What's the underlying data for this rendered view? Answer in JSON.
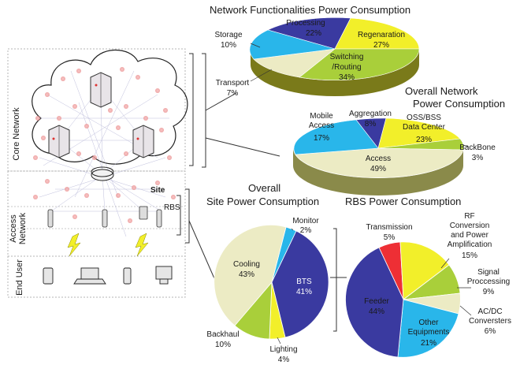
{
  "titles": {
    "network_functionalities": "Network Functionalities Power Consumption",
    "overall_network_l1": "Overall Network",
    "overall_network_l2": "Power Consumption",
    "overall_site_l1": "Overall",
    "overall_site_l2": "Site Power Consumption",
    "rbs": "RBS Power Consumption"
  },
  "left_panel": {
    "core_network": "Core Network",
    "access_network_l1": "Access",
    "access_network_l2": "Network",
    "end_user": "End User",
    "site": "Site",
    "rbs": "RBS"
  },
  "colors": {
    "navy": "#3a3aa0",
    "yellow": "#f2ef2a",
    "green": "#a9cf3a",
    "cream": "#ecebc4",
    "cyan": "#29b6ea",
    "red": "#ee2f35",
    "gray": "#c8c8c8"
  },
  "chart_data": [
    {
      "type": "pie",
      "title": "Network Functionalities Power Consumption",
      "slices": [
        {
          "label": "Processing",
          "value": "22%",
          "color": "#3a3aa0"
        },
        {
          "label": "Regenaration",
          "value": "27%",
          "color": "#f2ef2a"
        },
        {
          "label": "Switching /Routing",
          "value": "34%",
          "color": "#a9cf3a"
        },
        {
          "label": "Transport",
          "value": "7%",
          "color": "#ecebc4"
        },
        {
          "label": "Storage",
          "value": "10%",
          "color": "#29b6ea"
        }
      ]
    },
    {
      "type": "pie",
      "title": "Overall Network Power Consumption",
      "slices": [
        {
          "label": "Aggregation",
          "value": "8%",
          "color": "#3a3aa0"
        },
        {
          "label": "OSS/BSS Data Center",
          "value": "23%",
          "color": "#f2ef2a"
        },
        {
          "label": "BackBone",
          "value": "3%",
          "color": "#a9cf3a"
        },
        {
          "label": "Access",
          "value": "49%",
          "color": "#ecebc4"
        },
        {
          "label": "Mobile Access",
          "value": "17%",
          "color": "#29b6ea"
        }
      ]
    },
    {
      "type": "pie",
      "title": "Overall Site Power Consumption",
      "slices": [
        {
          "label": "Monitor",
          "value": "2%",
          "color": "#29b6ea"
        },
        {
          "label": "BTS",
          "value": "41%",
          "color": "#3a3aa0"
        },
        {
          "label": "Lighting",
          "value": "4%",
          "color": "#f2ef2a"
        },
        {
          "label": "Backhaul",
          "value": "10%",
          "color": "#a9cf3a"
        },
        {
          "label": "Cooling",
          "value": "43%",
          "color": "#ecebc4"
        }
      ]
    },
    {
      "type": "pie",
      "title": "RBS Power Consumption",
      "slices": [
        {
          "label": "Transmission",
          "value": "5%",
          "color": "#ee2f35"
        },
        {
          "label": "RF Conversion and Power Amplification",
          "value": "15%",
          "color": "#f2ef2a"
        },
        {
          "label": "Signal Proccessing",
          "value": "9%",
          "color": "#a9cf3a"
        },
        {
          "label": "AC/DC Conversters",
          "value": "6%",
          "color": "#ecebc4"
        },
        {
          "label": "Other Equipments",
          "value": "21%",
          "color": "#29b6ea"
        },
        {
          "label": "Feeder",
          "value": "44%",
          "color": "#3a3aa0"
        }
      ]
    }
  ]
}
